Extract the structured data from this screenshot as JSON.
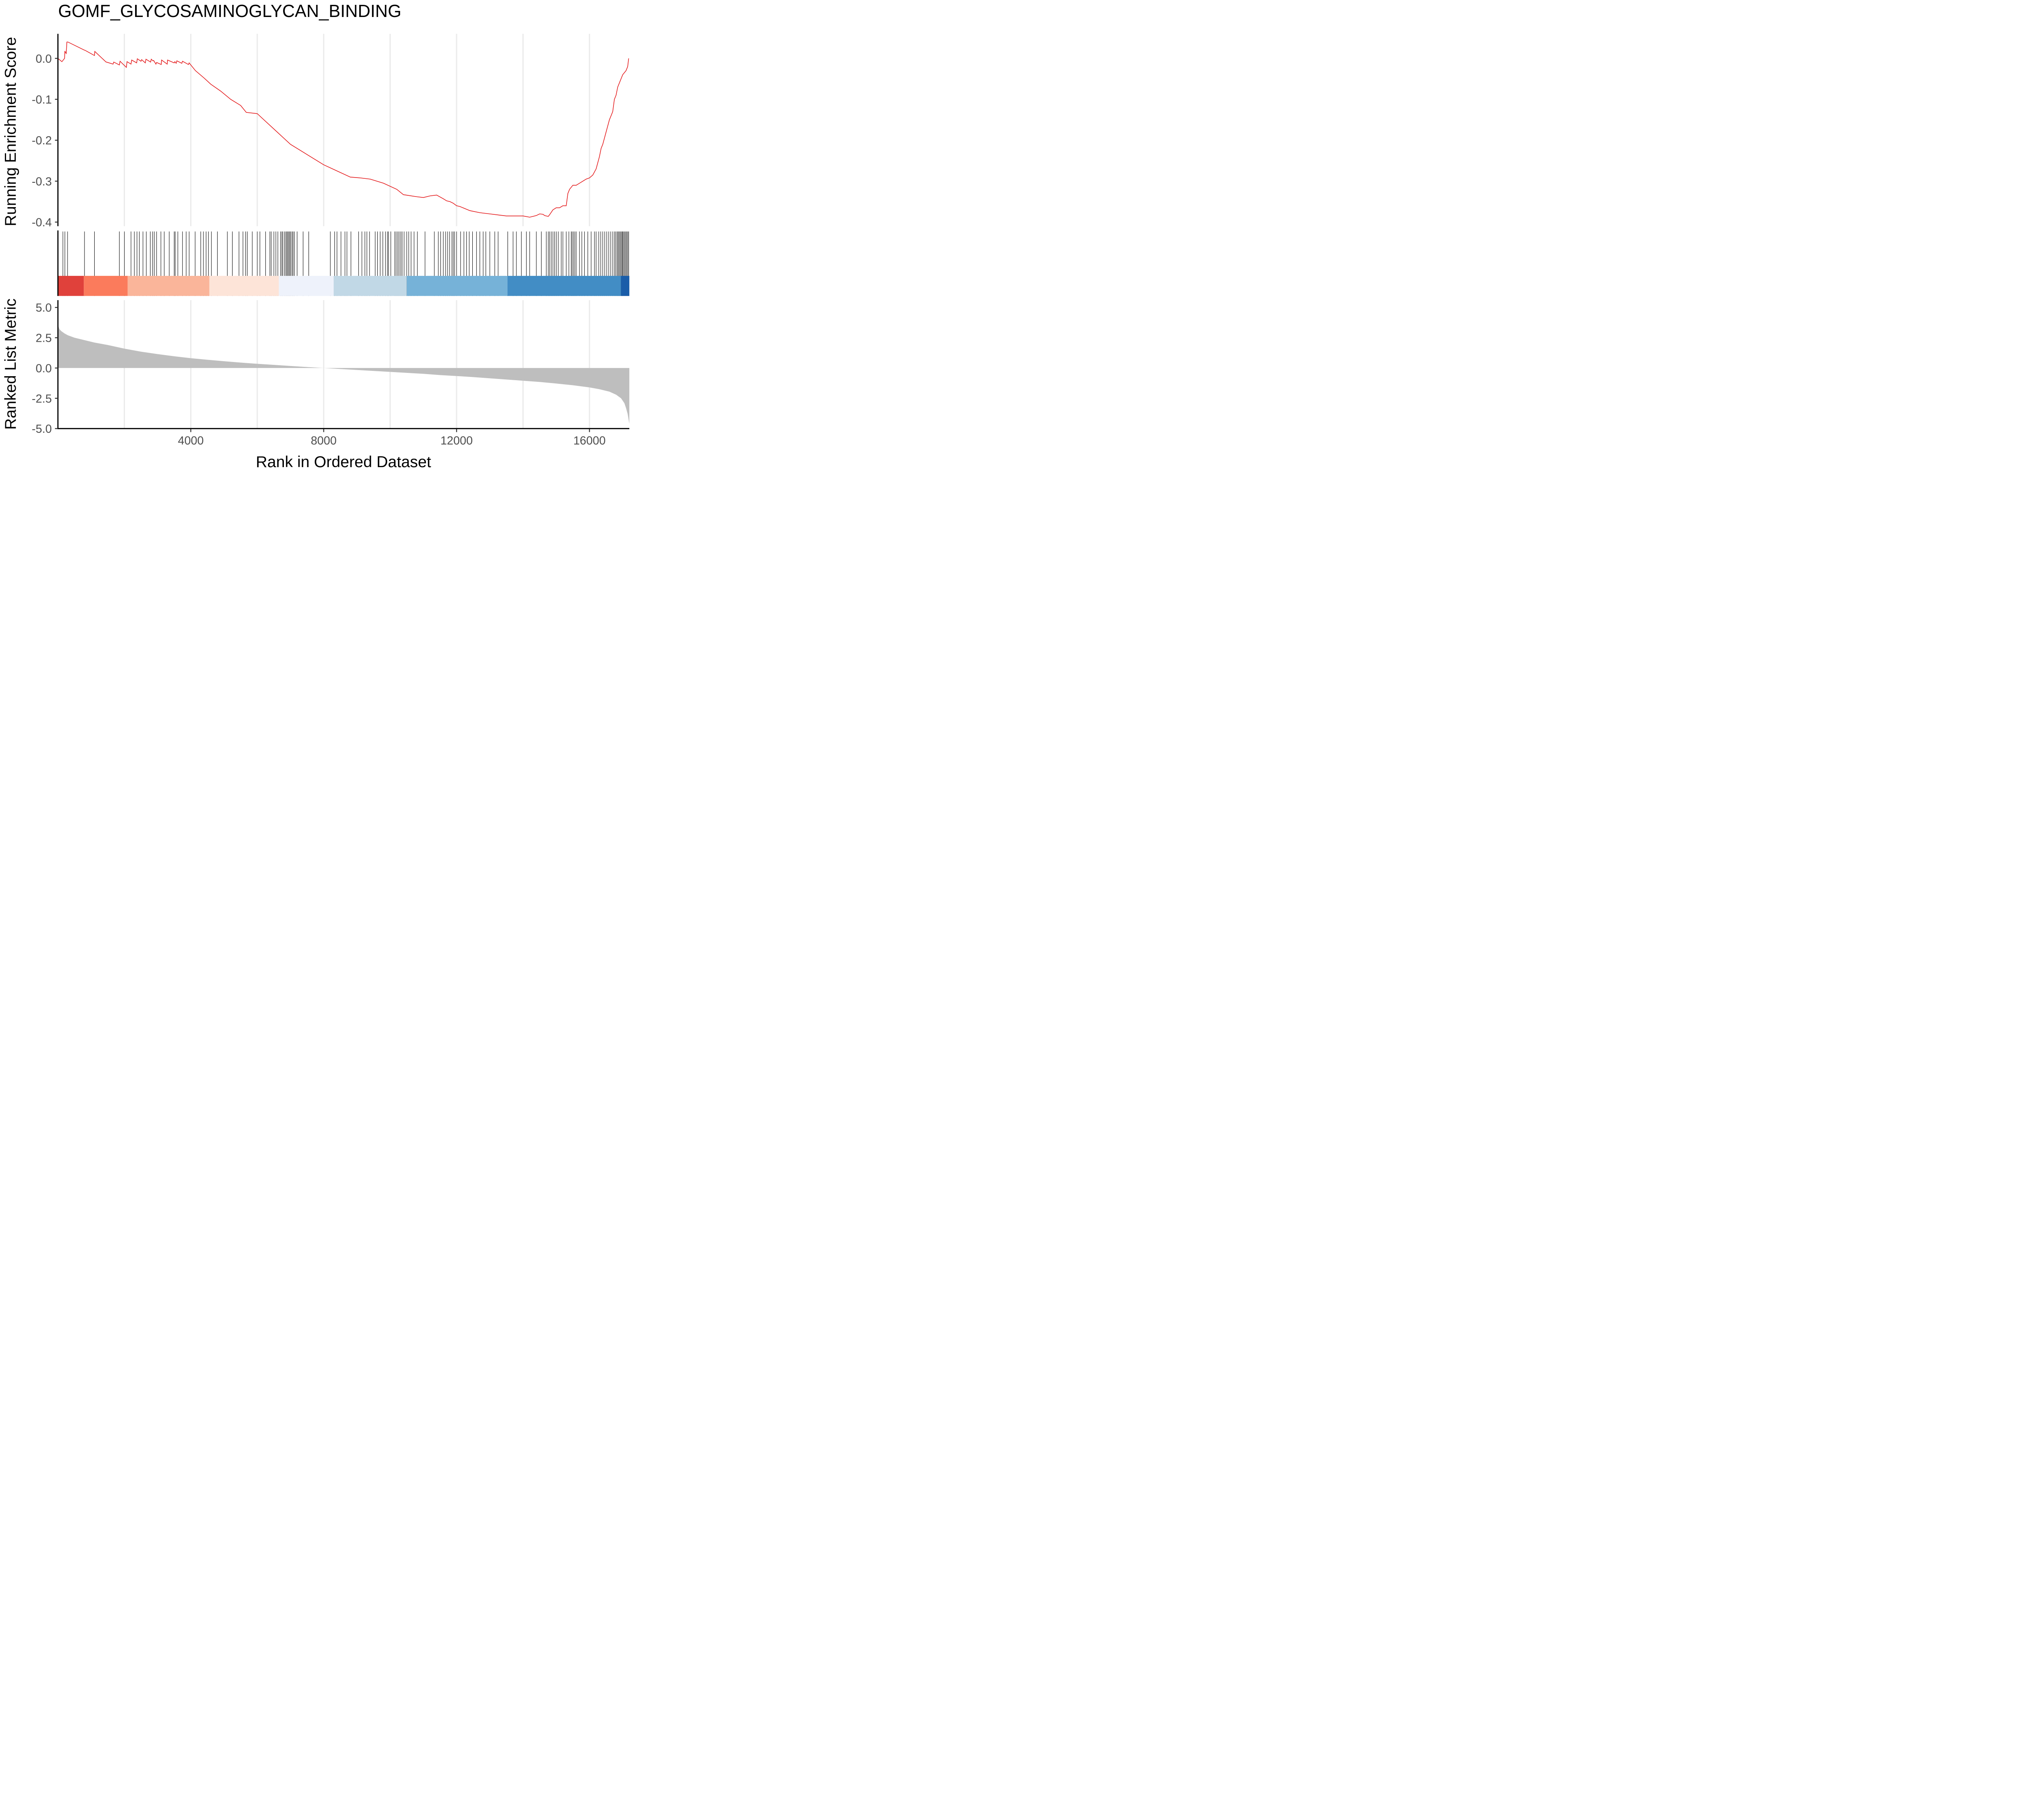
{
  "chart_data": {
    "type": "line",
    "title": "GOMF_GLYCOSAMINOGLYCAN_BINDING",
    "xlabel": "Rank in Ordered Dataset",
    "xlim": [
      0,
      17200
    ],
    "x_ticks": [
      4000,
      8000,
      12000,
      16000
    ],
    "x_tick_labels": [
      "4000",
      "8000",
      "12000",
      "16000"
    ],
    "grid": "vertical major and minor lines",
    "colors": {
      "running_score": "#e41a1c",
      "metric_fill": "#bebebe",
      "grid": "#ebebeb",
      "hit": "#000000"
    },
    "panels": [
      {
        "name": "running-enrichment-score",
        "ylabel": "Running Enrichment Score",
        "ylim": [
          -0.41,
          0.06
        ],
        "y_ticks": [
          0.0,
          -0.1,
          -0.2,
          -0.3,
          -0.4
        ],
        "y_tick_labels": [
          "0.0",
          "-0.1",
          "-0.2",
          "-0.3",
          "-0.4"
        ],
        "series": [
          {
            "x": [
              0,
              120,
              200,
              210,
              230,
              250,
              270,
              290,
              300,
              800,
              810,
              1100,
              1110,
              1450,
              1460,
              1660,
              1680,
              1850,
              1870,
              2060,
              2080,
              2200,
              2220,
              2370,
              2390,
              2500,
              2520,
              2630,
              2650,
              2790,
              2810,
              2860,
              2880,
              2950,
              2970,
              3110,
              3120,
              3290,
              3300,
              3500,
              3520,
              3560,
              3580,
              3730,
              3750,
              3930,
              3950,
              4140,
              4400,
              4600,
              4900,
              5200,
              5500,
              5650,
              5670,
              6000,
              6200,
              6600,
              6800,
              7000,
              7400,
              7800,
              8000,
              8400,
              8800,
              9100,
              9400,
              9800,
              10200,
              10400,
              10800,
              11000,
              11200,
              11400,
              11600,
              11700,
              11800,
              11900,
              12000,
              12100,
              12400,
              12700,
              13000,
              13300,
              13500,
              13800,
              14000,
              14200,
              14300,
              14400,
              14500,
              14600,
              14650,
              14700,
              14760,
              14800,
              14900,
              15000,
              15100,
              15200,
              15300,
              15350,
              15400,
              15500,
              15600,
              15700,
              15800,
              15900,
              16000,
              16100,
              16200,
              16300,
              16350,
              16400,
              16500,
              16600,
              16650,
              16700,
              16750,
              16800,
              16850,
              16900,
              16950,
              17000,
              17050,
              17100,
              17150,
              17180
            ],
            "y": [
              0.0,
              -0.008,
              0.0,
              0.018,
              0.014,
              0.012,
              0.04,
              0.04,
              0.04,
              0.02,
              0.02,
              0.007,
              0.017,
              -0.009,
              -0.009,
              -0.014,
              -0.009,
              -0.016,
              -0.007,
              -0.022,
              -0.008,
              -0.014,
              -0.004,
              -0.011,
              -0.001,
              -0.007,
              -0.003,
              -0.011,
              -0.002,
              -0.009,
              -0.002,
              -0.006,
              -0.005,
              -0.014,
              -0.01,
              -0.015,
              -0.004,
              -0.014,
              -0.004,
              -0.011,
              -0.008,
              -0.012,
              -0.006,
              -0.012,
              -0.007,
              -0.015,
              -0.011,
              -0.03,
              -0.048,
              -0.063,
              -0.08,
              -0.1,
              -0.115,
              -0.13,
              -0.132,
              -0.135,
              -0.15,
              -0.18,
              -0.195,
              -0.21,
              -0.23,
              -0.25,
              -0.26,
              -0.275,
              -0.29,
              -0.292,
              -0.295,
              -0.305,
              -0.32,
              -0.333,
              -0.338,
              -0.34,
              -0.336,
              -0.334,
              -0.343,
              -0.348,
              -0.35,
              -0.354,
              -0.36,
              -0.362,
              -0.372,
              -0.377,
              -0.38,
              -0.383,
              -0.385,
              -0.385,
              -0.385,
              -0.388,
              -0.386,
              -0.384,
              -0.38,
              -0.381,
              -0.384,
              -0.385,
              -0.386,
              -0.382,
              -0.37,
              -0.365,
              -0.365,
              -0.36,
              -0.36,
              -0.33,
              -0.32,
              -0.31,
              -0.31,
              -0.305,
              -0.3,
              -0.295,
              -0.292,
              -0.285,
              -0.27,
              -0.24,
              -0.22,
              -0.21,
              -0.18,
              -0.15,
              -0.14,
              -0.13,
              -0.1,
              -0.09,
              -0.07,
              -0.06,
              -0.05,
              -0.04,
              -0.035,
              -0.03,
              -0.02,
              0.0
            ]
          }
        ]
      },
      {
        "name": "gene-set-hits",
        "hits": [
          150,
          210,
          290,
          800,
          1100,
          1850,
          2000,
          2200,
          2300,
          2380,
          2450,
          2560,
          2660,
          2780,
          2850,
          2900,
          2970,
          3100,
          3200,
          3350,
          3500,
          3530,
          3610,
          3750,
          3860,
          3950,
          4130,
          4300,
          4380,
          4460,
          4530,
          4620,
          4800,
          5100,
          5250,
          5450,
          5570,
          5650,
          5700,
          5850,
          6000,
          6080,
          6250,
          6380,
          6420,
          6500,
          6560,
          6620,
          6700,
          6740,
          6770,
          6820,
          6860,
          6890,
          6920,
          6950,
          6980,
          7010,
          7050,
          7080,
          7120,
          7200,
          7380,
          7550,
          8200,
          8330,
          8400,
          8520,
          8640,
          8700,
          8820,
          9050,
          9150,
          9240,
          9300,
          9380,
          9550,
          9620,
          9700,
          9780,
          9860,
          9920,
          9950,
          10020,
          10140,
          10180,
          10230,
          10270,
          10320,
          10360,
          10420,
          10500,
          10560,
          10630,
          10720,
          10820,
          11050,
          11330,
          11450,
          11520,
          11600,
          11670,
          11730,
          11790,
          11860,
          11900,
          11940,
          12000,
          12120,
          12220,
          12300,
          12380,
          12480,
          12600,
          12700,
          12800,
          12880,
          13000,
          13150,
          13250,
          13540,
          13700,
          13800,
          13950,
          14100,
          14200,
          14400,
          14550,
          14700,
          14760,
          14800,
          14850,
          14900,
          14950,
          15000,
          15060,
          15150,
          15200,
          15300,
          15380,
          15450,
          15480,
          15520,
          15560,
          15600,
          15700,
          15770,
          15850,
          15950,
          16050,
          16150,
          16200,
          16280,
          16340,
          16400,
          16460,
          16520,
          16580,
          16640,
          16700,
          16750,
          16790,
          16830,
          16860,
          16890,
          16920,
          16950,
          16980,
          17000,
          17030,
          17060,
          17090,
          17120,
          17150,
          17180
        ],
        "color_bands": [
          {
            "from": 0,
            "to": 780,
            "color": "#e0413b"
          },
          {
            "from": 780,
            "to": 2100,
            "color": "#fb7b5c"
          },
          {
            "from": 2100,
            "to": 4560,
            "color": "#fab59a"
          },
          {
            "from": 4560,
            "to": 6650,
            "color": "#fde4d8"
          },
          {
            "from": 6650,
            "to": 8300,
            "color": "#eef2fb"
          },
          {
            "from": 8300,
            "to": 10500,
            "color": "#c1d8e6"
          },
          {
            "from": 10500,
            "to": 13530,
            "color": "#76b2d8"
          },
          {
            "from": 13530,
            "to": 16950,
            "color": "#428dc5"
          },
          {
            "from": 16950,
            "to": 17200,
            "color": "#1a5da9"
          }
        ]
      },
      {
        "name": "ranked-list-metric",
        "ylabel": "Ranked List Metric",
        "ylim": [
          -5.0,
          5.6
        ],
        "y_ticks": [
          5.0,
          2.5,
          0.0,
          -2.5,
          -5.0
        ],
        "y_tick_labels": [
          "5.0",
          "2.5",
          "0.0",
          "-2.5",
          "-5.0"
        ],
        "series": [
          {
            "type": "area",
            "x": [
              0,
              5,
              20,
              50,
              100,
              200,
              300,
              500,
              800,
              1100,
              1500,
              2000,
              2500,
              3000,
              3500,
              4000,
              4500,
              5000,
              5500,
              6000,
              6500,
              7000,
              7500,
              8000,
              8500,
              9000,
              9500,
              10000,
              10500,
              11000,
              11500,
              12000,
              12500,
              13000,
              13500,
              14000,
              14500,
              15000,
              15500,
              16000,
              16300,
              16600,
              16800,
              16950,
              17050,
              17100,
              17150,
              17180,
              17200
            ],
            "y": [
              5.5,
              3.6,
              3.4,
              3.2,
              3.05,
              2.85,
              2.7,
              2.5,
              2.3,
              2.1,
              1.9,
              1.6,
              1.35,
              1.15,
              0.97,
              0.81,
              0.68,
              0.56,
              0.45,
              0.35,
              0.26,
              0.17,
              0.08,
              0.0,
              -0.08,
              -0.16,
              -0.24,
              -0.32,
              -0.4,
              -0.48,
              -0.58,
              -0.66,
              -0.75,
              -0.85,
              -0.95,
              -1.05,
              -1.15,
              -1.28,
              -1.42,
              -1.6,
              -1.75,
              -1.95,
              -2.2,
              -2.5,
              -2.9,
              -3.3,
              -3.8,
              -4.3,
              -4.6
            ]
          }
        ]
      }
    ]
  }
}
